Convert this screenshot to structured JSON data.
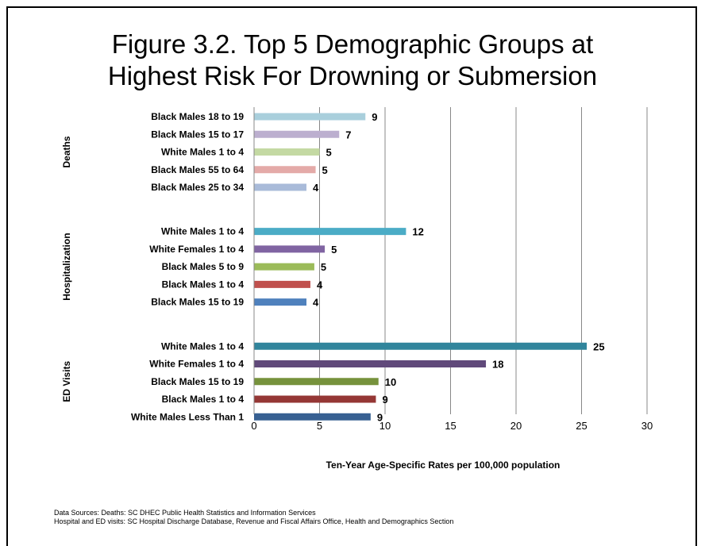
{
  "title_line1": "Figure 3.2. Top 5 Demographic Groups at",
  "title_line2": "Highest Risk For Drowning or Submersion",
  "sources": {
    "line1": "Data Sources:  Deaths:  SC DHEC Public Health Statistics and Information Services",
    "line2": "Hospital and ED visits:  SC Hospital Discharge Database, Revenue and Fiscal Affairs Office, Health and Demographics Section"
  },
  "chart_data": {
    "type": "bar",
    "orientation": "horizontal",
    "xlabel": "Ten-Year Age-Specific Rates per 100,000 population",
    "xlim": [
      0,
      30
    ],
    "xticks": [
      0,
      5,
      10,
      15,
      20,
      25,
      30
    ],
    "grid": "vertical",
    "groups": [
      {
        "name": "Deaths",
        "bars": [
          {
            "label": "Black Males 18 to 19",
            "value": 8.5,
            "value_label": "9",
            "color": "#a9cfdc"
          },
          {
            "label": "Black Males 15 to 17",
            "value": 6.5,
            "value_label": "7",
            "color": "#bcafcf"
          },
          {
            "label": "White Males 1 to 4",
            "value": 5.0,
            "value_label": "5",
            "color": "#c4d9a3"
          },
          {
            "label": "Black Males 55 to 64",
            "value": 4.7,
            "value_label": "5",
            "color": "#e4aaa8"
          },
          {
            "label": "Black Males 25 to 34",
            "value": 4.0,
            "value_label": "4",
            "color": "#a9bbd9"
          }
        ]
      },
      {
        "name": "Hospitalization",
        "bars": [
          {
            "label": "White Males 1 to 4",
            "value": 11.6,
            "value_label": "12",
            "color": "#4bacc6"
          },
          {
            "label": "White Females 1 to 4",
            "value": 5.4,
            "value_label": "5",
            "color": "#8064a2"
          },
          {
            "label": "Black Males 5 to 9",
            "value": 4.6,
            "value_label": "5",
            "color": "#9bbb59"
          },
          {
            "label": "Black Males 1 to 4",
            "value": 4.3,
            "value_label": "4",
            "color": "#c0504d"
          },
          {
            "label": "Black Males 15 to 19",
            "value": 4.0,
            "value_label": "4",
            "color": "#4f81bd"
          }
        ]
      },
      {
        "name": "ED Visits",
        "bars": [
          {
            "label": "White Males 1 to 4",
            "value": 25.4,
            "value_label": "25",
            "color": "#31859c"
          },
          {
            "label": "White Females 1 to 4",
            "value": 17.7,
            "value_label": "18",
            "color": "#60497a"
          },
          {
            "label": "Black Males 15 to 19",
            "value": 9.5,
            "value_label": "10",
            "color": "#76923c"
          },
          {
            "label": "Black Males 1 to 4",
            "value": 9.3,
            "value_label": "9",
            "color": "#953735"
          },
          {
            "label": "White Males Less Than 1",
            "value": 8.9,
            "value_label": "9",
            "color": "#376092"
          }
        ]
      }
    ]
  }
}
